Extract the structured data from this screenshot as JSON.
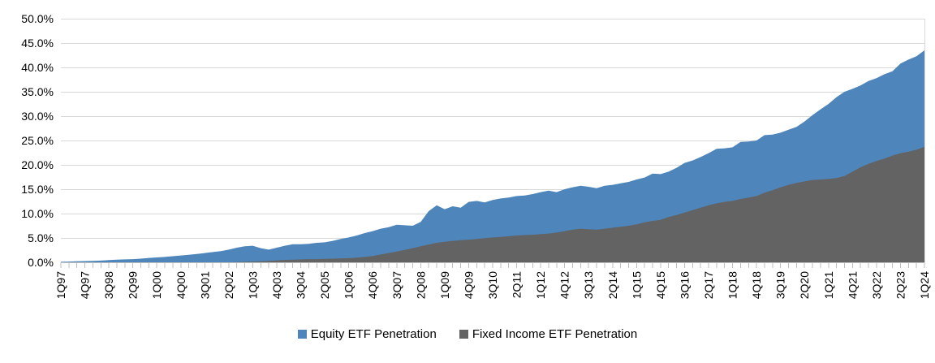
{
  "chart_data": {
    "type": "area",
    "mode": "overlapping",
    "title": "",
    "ylim": [
      0,
      50
    ],
    "grid": true,
    "legend_position": "bottom",
    "grid_color": "#D9D9D9",
    "axis_color": "#BFBFBF",
    "text_color": "#000000",
    "y_tick_labels": [
      "0.0%",
      "5.0%",
      "10.0%",
      "15.0%",
      "20.0%",
      "25.0%",
      "30.0%",
      "35.0%",
      "40.0%",
      "45.0%",
      "50.0%"
    ],
    "x_label_every": 3,
    "x_tick_labels": [
      "1Q97",
      "4Q97",
      "3Q98",
      "2Q99",
      "1Q00",
      "4Q00",
      "3Q01",
      "2Q02",
      "1Q03",
      "4Q03",
      "3Q04",
      "2Q05",
      "1Q06",
      "4Q06",
      "3Q07",
      "2Q08",
      "1Q09",
      "4Q09",
      "3Q10",
      "2Q11",
      "1Q12",
      "4Q12",
      "3Q13",
      "2Q14",
      "1Q15",
      "4Q15",
      "3Q16",
      "2Q17",
      "1Q18",
      "4Q18",
      "3Q19",
      "2Q20",
      "1Q21",
      "4Q21",
      "3Q22",
      "2Q23",
      "1Q24"
    ],
    "categories": [
      "1Q97",
      "2Q97",
      "3Q97",
      "4Q97",
      "1Q98",
      "2Q98",
      "3Q98",
      "4Q98",
      "1Q99",
      "2Q99",
      "3Q99",
      "4Q99",
      "1Q00",
      "2Q00",
      "3Q00",
      "4Q00",
      "1Q01",
      "2Q01",
      "3Q01",
      "4Q01",
      "1Q02",
      "2Q02",
      "3Q02",
      "4Q02",
      "1Q03",
      "2Q03",
      "3Q03",
      "4Q03",
      "1Q04",
      "2Q04",
      "3Q04",
      "4Q04",
      "1Q05",
      "2Q05",
      "3Q05",
      "4Q05",
      "1Q06",
      "2Q06",
      "3Q06",
      "4Q06",
      "1Q07",
      "2Q07",
      "3Q07",
      "4Q07",
      "1Q08",
      "2Q08",
      "3Q08",
      "4Q08",
      "1Q09",
      "2Q09",
      "3Q09",
      "4Q09",
      "1Q10",
      "2Q10",
      "3Q10",
      "4Q10",
      "1Q11",
      "2Q11",
      "3Q11",
      "4Q11",
      "1Q12",
      "2Q12",
      "3Q12",
      "4Q12",
      "1Q13",
      "2Q13",
      "3Q13",
      "4Q13",
      "1Q14",
      "2Q14",
      "3Q14",
      "4Q14",
      "1Q15",
      "2Q15",
      "3Q15",
      "4Q15",
      "1Q16",
      "2Q16",
      "3Q16",
      "4Q16",
      "1Q17",
      "2Q17",
      "3Q17",
      "4Q17",
      "1Q18",
      "2Q18",
      "3Q18",
      "4Q18",
      "1Q19",
      "2Q19",
      "3Q19",
      "4Q19",
      "1Q20",
      "2Q20",
      "3Q20",
      "4Q20",
      "1Q21",
      "2Q21",
      "3Q21",
      "4Q21",
      "1Q22",
      "2Q22",
      "3Q22",
      "4Q22",
      "1Q23",
      "2Q23",
      "3Q23",
      "4Q23",
      "1Q24"
    ],
    "series": [
      {
        "name": "Equity ETF Penetration",
        "color": "#4E86BC",
        "values": [
          0.1,
          0.15,
          0.2,
          0.25,
          0.3,
          0.35,
          0.45,
          0.55,
          0.6,
          0.65,
          0.75,
          0.9,
          1.0,
          1.1,
          1.25,
          1.4,
          1.55,
          1.7,
          1.9,
          2.1,
          2.3,
          2.6,
          3.0,
          3.3,
          3.4,
          2.9,
          2.6,
          3.0,
          3.4,
          3.7,
          3.7,
          3.8,
          4.0,
          4.1,
          4.4,
          4.8,
          5.1,
          5.5,
          6.0,
          6.4,
          6.9,
          7.2,
          7.7,
          7.6,
          7.5,
          8.3,
          10.5,
          11.7,
          10.9,
          11.5,
          11.2,
          12.4,
          12.6,
          12.3,
          12.8,
          13.1,
          13.3,
          13.6,
          13.7,
          14.0,
          14.4,
          14.7,
          14.4,
          15.0,
          15.4,
          15.7,
          15.5,
          15.2,
          15.7,
          15.9,
          16.2,
          16.5,
          17.0,
          17.4,
          18.2,
          18.1,
          18.6,
          19.4,
          20.4,
          20.9,
          21.6,
          22.4,
          23.3,
          23.4,
          23.6,
          24.7,
          24.8,
          25.0,
          26.1,
          26.2,
          26.6,
          27.2,
          27.8,
          28.9,
          30.2,
          31.4,
          32.5,
          33.9,
          35.0,
          35.6,
          36.3,
          37.2,
          37.8,
          38.6,
          39.2,
          40.8,
          41.6,
          42.3,
          43.5
        ]
      },
      {
        "name": "Fixed Income ETF Penetration",
        "color": "#636363",
        "values": [
          0,
          0,
          0,
          0,
          0,
          0,
          0,
          0,
          0,
          0,
          0,
          0,
          0,
          0,
          0,
          0,
          0,
          0,
          0,
          0,
          0,
          0,
          0.05,
          0.1,
          0.15,
          0.2,
          0.3,
          0.4,
          0.5,
          0.55,
          0.6,
          0.65,
          0.65,
          0.7,
          0.75,
          0.8,
          0.85,
          0.95,
          1.1,
          1.3,
          1.6,
          1.9,
          2.2,
          2.55,
          2.9,
          3.3,
          3.65,
          4.0,
          4.2,
          4.4,
          4.55,
          4.65,
          4.8,
          4.95,
          5.1,
          5.2,
          5.35,
          5.5,
          5.6,
          5.65,
          5.8,
          5.9,
          6.1,
          6.4,
          6.7,
          6.9,
          6.8,
          6.7,
          6.9,
          7.1,
          7.3,
          7.5,
          7.8,
          8.2,
          8.5,
          8.7,
          9.3,
          9.7,
          10.2,
          10.7,
          11.2,
          11.7,
          12.1,
          12.4,
          12.6,
          13.0,
          13.3,
          13.6,
          14.3,
          14.8,
          15.4,
          15.9,
          16.3,
          16.6,
          16.9,
          17.0,
          17.1,
          17.3,
          17.7,
          18.6,
          19.5,
          20.2,
          20.8,
          21.3,
          21.9,
          22.4,
          22.7,
          23.1,
          23.7
        ]
      }
    ]
  },
  "legend": {
    "items": [
      {
        "label": "Equity ETF Penetration",
        "color": "#4E86BC"
      },
      {
        "label": "Fixed Income ETF Penetration",
        "color": "#636363"
      }
    ]
  }
}
